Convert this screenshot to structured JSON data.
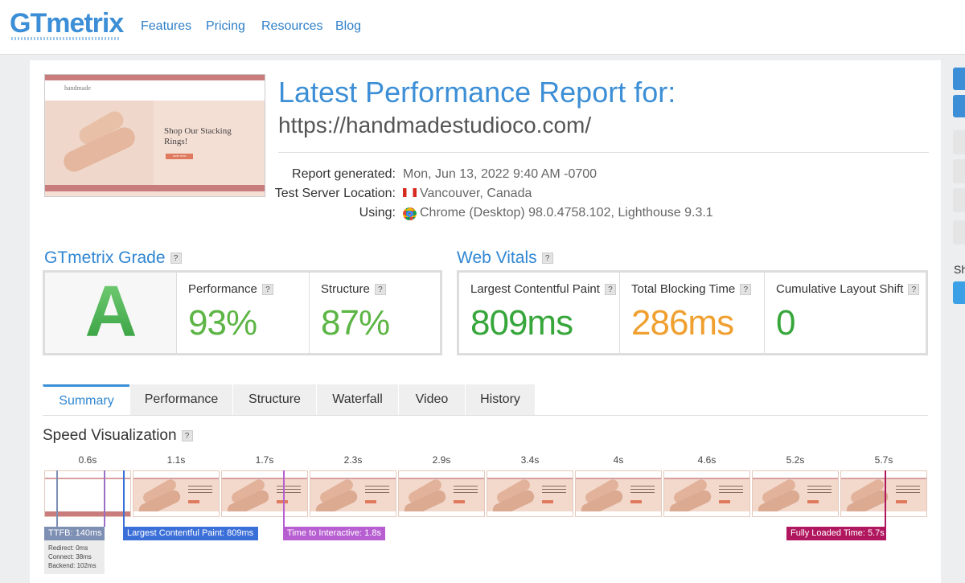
{
  "nav": {
    "logo": "GTmetrix",
    "links": [
      "Features",
      "Pricing",
      "Resources",
      "Blog"
    ]
  },
  "thumbnail": {
    "brand": "handmade",
    "headline": "Shop Our Stacking Rings!",
    "button": "SHOP NOW"
  },
  "report": {
    "title": "Latest Performance Report for:",
    "url": "https://handmadestudioco.com/",
    "details": [
      {
        "label": "Report generated:",
        "value": "Mon, Jun 13, 2022 9:40 AM -0700"
      },
      {
        "label": "Test Server Location:",
        "value": "Vancouver, Canada"
      },
      {
        "label": "Using:",
        "value": "Chrome (Desktop) 98.0.4758.102, Lighthouse 9.3.1"
      }
    ]
  },
  "grade": {
    "title": "GTmetrix Grade",
    "help": "?",
    "letter": "A",
    "metrics": [
      {
        "label": "Performance",
        "value": "93%"
      },
      {
        "label": "Structure",
        "value": "87%"
      }
    ]
  },
  "vitals": {
    "title": "Web Vitals",
    "help": "?",
    "metrics": [
      {
        "label": "Largest Contentful Paint",
        "value": "809ms"
      },
      {
        "label": "Total Blocking Time",
        "value": "286ms"
      },
      {
        "label": "Cumulative Layout Shift",
        "value": "0"
      }
    ]
  },
  "tabs": [
    "Summary",
    "Performance",
    "Structure",
    "Waterfall",
    "Video",
    "History"
  ],
  "speed": {
    "title": "Speed Visualization",
    "help": "?",
    "frames": [
      "0.6s",
      "1.1s",
      "1.7s",
      "2.3s",
      "2.9s",
      "3.4s",
      "4s",
      "4.6s",
      "5.2s",
      "5.7s"
    ],
    "markers": [
      "TTFB: 140ms",
      "Largest Contentful Paint: 809ms",
      "Time to Interactive: 1.8s",
      "Fully Loaded Time: 5.7s"
    ],
    "ttfb_breakdown": [
      "Redirect: 0ms",
      "Connect: 38ms",
      "Backend: 102ms"
    ]
  },
  "sidebar": {
    "label": "Sh"
  }
}
